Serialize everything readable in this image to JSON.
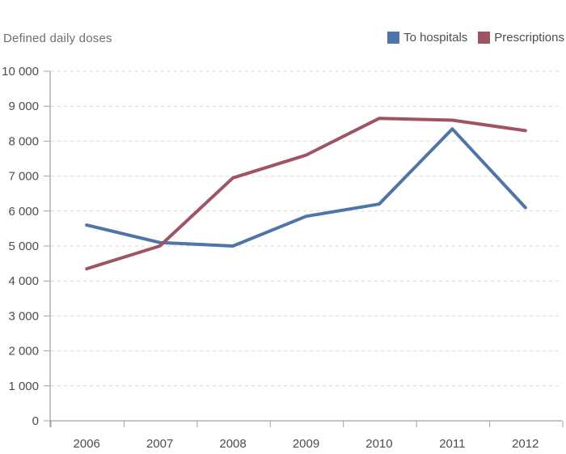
{
  "header": {
    "title": "Defined daily doses"
  },
  "legend": [
    {
      "label": "To hospitals",
      "color": "#4e74a8"
    },
    {
      "label": "Prescriptions",
      "color": "#9e5462"
    }
  ],
  "chart_data": {
    "type": "line",
    "title": "Defined daily doses",
    "x": [
      "2006",
      "2007",
      "2008",
      "2009",
      "2010",
      "2011",
      "2012"
    ],
    "series": [
      {
        "name": "To hospitals",
        "color": "#4e74a8",
        "values": [
          5600,
          5100,
          5000,
          5850,
          6200,
          8350,
          6100
        ]
      },
      {
        "name": "Prescriptions",
        "color": "#9e5462",
        "values": [
          4350,
          5000,
          6950,
          7600,
          8650,
          8600,
          8300
        ]
      }
    ],
    "xlabel": "",
    "ylabel": "Defined daily doses",
    "ylim": [
      0,
      10000
    ],
    "y_ticks": [
      {
        "value": 0,
        "label": "0"
      },
      {
        "value": 1000,
        "label": "1 000"
      },
      {
        "value": 2000,
        "label": "2 000"
      },
      {
        "value": 3000,
        "label": "3 000"
      },
      {
        "value": 4000,
        "label": "4 000"
      },
      {
        "value": 5000,
        "label": "5 000"
      },
      {
        "value": 6000,
        "label": "6 000"
      },
      {
        "value": 7000,
        "label": "7 000"
      },
      {
        "value": 8000,
        "label": "8 000"
      },
      {
        "value": 9000,
        "label": "9 000"
      },
      {
        "value": 10000,
        "label": "10 000"
      }
    ],
    "grid": "horizontal-dashed",
    "legend_position": "top-right",
    "colors": {
      "axis": "#a3a3a3",
      "grid": "#d9d9d9",
      "tick_labels": "#4d4d4d",
      "title_text": "#6f6f6f"
    }
  }
}
